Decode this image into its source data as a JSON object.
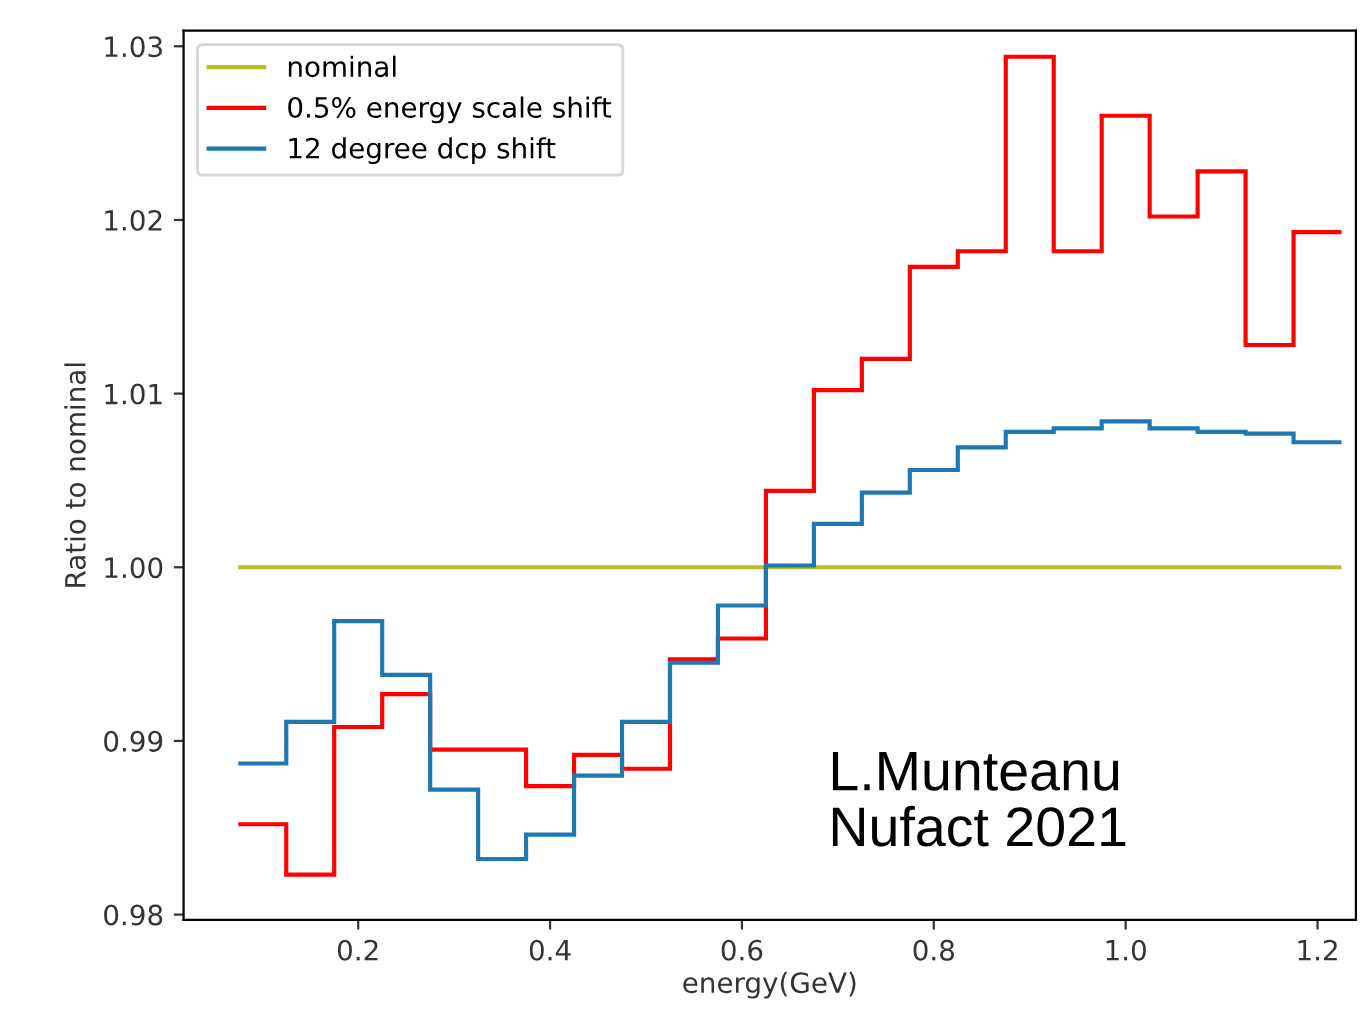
{
  "chart_data": {
    "type": "histogram",
    "xlabel": "energy(GeV)",
    "ylabel": "Ratio to nominal",
    "bins": [
      0.075,
      0.125,
      0.175,
      0.225,
      0.275,
      0.325,
      0.375,
      0.425,
      0.475,
      0.525,
      0.575,
      0.625,
      0.675,
      0.725,
      0.775,
      0.825,
      0.875,
      0.925,
      0.975,
      1.025,
      1.075,
      1.125,
      1.175,
      1.225
    ],
    "series": [
      {
        "name": "nominal",
        "color": "#bcbd22",
        "values": [
          1.0,
          1.0,
          1.0,
          1.0,
          1.0,
          1.0,
          1.0,
          1.0,
          1.0,
          1.0,
          1.0,
          1.0,
          1.0,
          1.0,
          1.0,
          1.0,
          1.0,
          1.0,
          1.0,
          1.0,
          1.0,
          1.0,
          1.0
        ]
      },
      {
        "name": "0.5% energy scale shift",
        "color": "#ff0000",
        "values": [
          0.9852,
          0.9823,
          0.9908,
          0.9927,
          0.9895,
          0.9895,
          0.9874,
          0.9892,
          0.9884,
          0.9947,
          0.9959,
          1.0044,
          1.0102,
          1.012,
          1.0173,
          1.0182,
          1.0294,
          1.0182,
          1.026,
          1.0202,
          1.0228,
          1.0128,
          1.0193
        ]
      },
      {
        "name": "12 degree dcp shift",
        "color": "#1f77b4",
        "values": [
          0.9887,
          0.9911,
          0.9969,
          0.9938,
          0.9872,
          0.9832,
          0.9846,
          0.988,
          0.9911,
          0.9945,
          0.9978,
          1.0001,
          1.0025,
          1.0043,
          1.0056,
          1.0069,
          1.0078,
          1.008,
          1.0084,
          1.008,
          1.0078,
          1.0077,
          1.0072
        ]
      }
    ],
    "xlim": [
      0.018,
      1.24
    ],
    "ylim": [
      0.9797,
      1.0309
    ],
    "xticks": [
      0.2,
      0.4,
      0.6,
      0.8,
      {
        "value": 1.0,
        "label": "1.0"
      },
      1.2
    ],
    "yticks": [
      0.98,
      0.99,
      {
        "value": 1.0,
        "label": "1.00"
      },
      1.01,
      1.02,
      1.03
    ],
    "legend": "top left",
    "grid": false,
    "annotations": [
      "L.Munteanu\nNufact 2021"
    ]
  }
}
